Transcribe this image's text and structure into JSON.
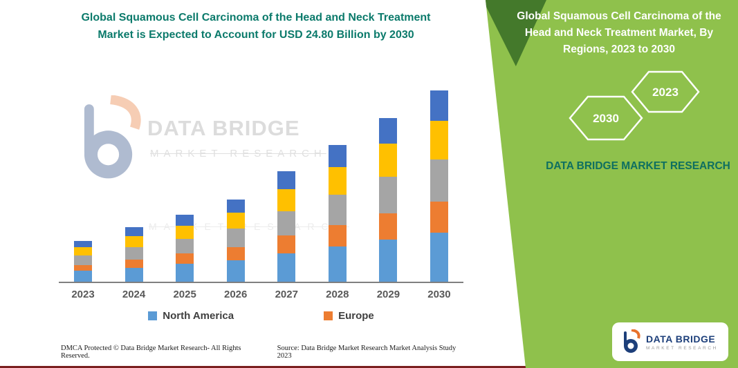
{
  "title": "Global Squamous Cell Carcinoma of the Head and Neck Treatment Market is Expected to Account for USD 24.80 Billion by 2030",
  "right_panel": {
    "title": "Global Squamous Cell Carcinoma of the Head and Neck Treatment Market, By Regions, 2023 to 2030",
    "hexagon_years": [
      "2030",
      "2023"
    ],
    "brand_text": "DATA BRIDGE MARKET RESEARCH",
    "panel_color": "#8FC14C",
    "accent_color": "#44792B"
  },
  "watermark": {
    "line1": "DATA BRIDGE",
    "line2": "MARKET RESEARCH",
    "line3": "MARKET RESEARCH"
  },
  "legend": [
    {
      "label": "North America",
      "color": "#5B9BD5"
    },
    {
      "label": "Europe",
      "color": "#ED7D31"
    }
  ],
  "logo_card": {
    "name": "DATA BRIDGE",
    "tagline": "MARKET RESEARCH"
  },
  "footer": {
    "left": "DMCA Protected © Data Bridge Market Research-  All Rights Reserved.",
    "source": "Source: Data Bridge Market Research  Market Analysis Study 2023"
  },
  "colors": {
    "title_teal": "#0B7A6B",
    "brand_teal": "#0E6F60",
    "axis_gray": "#595959"
  },
  "chart_data": {
    "type": "bar",
    "stacked": true,
    "title": "Global Squamous Cell Carcinoma of the Head and Neck Treatment Market, By Regions, 2023 to 2030",
    "unit": "USD Billion",
    "categories": [
      "2023",
      "2024",
      "2025",
      "2026",
      "2027",
      "2028",
      "2029",
      "2030"
    ],
    "series": [
      {
        "name": "North America",
        "color": "#5B9BD5",
        "values": [
          1.4,
          1.8,
          2.3,
          2.8,
          3.7,
          4.6,
          5.5,
          6.4
        ]
      },
      {
        "name": "Europe",
        "color": "#ED7D31",
        "values": [
          0.8,
          1.1,
          1.4,
          1.7,
          2.3,
          2.8,
          3.4,
          4.0
        ]
      },
      {
        "name": "",
        "color": "#A5A5A5",
        "values": [
          1.2,
          1.6,
          1.9,
          2.4,
          3.1,
          3.9,
          4.7,
          5.5
        ]
      },
      {
        "name": "",
        "color": "#FFC000",
        "values": [
          1.1,
          1.4,
          1.7,
          2.1,
          2.9,
          3.6,
          4.3,
          5.0
        ]
      },
      {
        "name": "",
        "color": "#4472C4",
        "values": [
          0.8,
          1.2,
          1.4,
          1.7,
          2.3,
          2.9,
          3.4,
          3.9
        ]
      }
    ],
    "totals": [
      5.3,
      7.1,
      8.7,
      10.7,
      14.3,
      17.8,
      21.3,
      24.8
    ],
    "ylim": [
      0,
      26
    ],
    "grid": false,
    "legend_visible": [
      "North America",
      "Europe"
    ],
    "legend_position": "bottom"
  }
}
